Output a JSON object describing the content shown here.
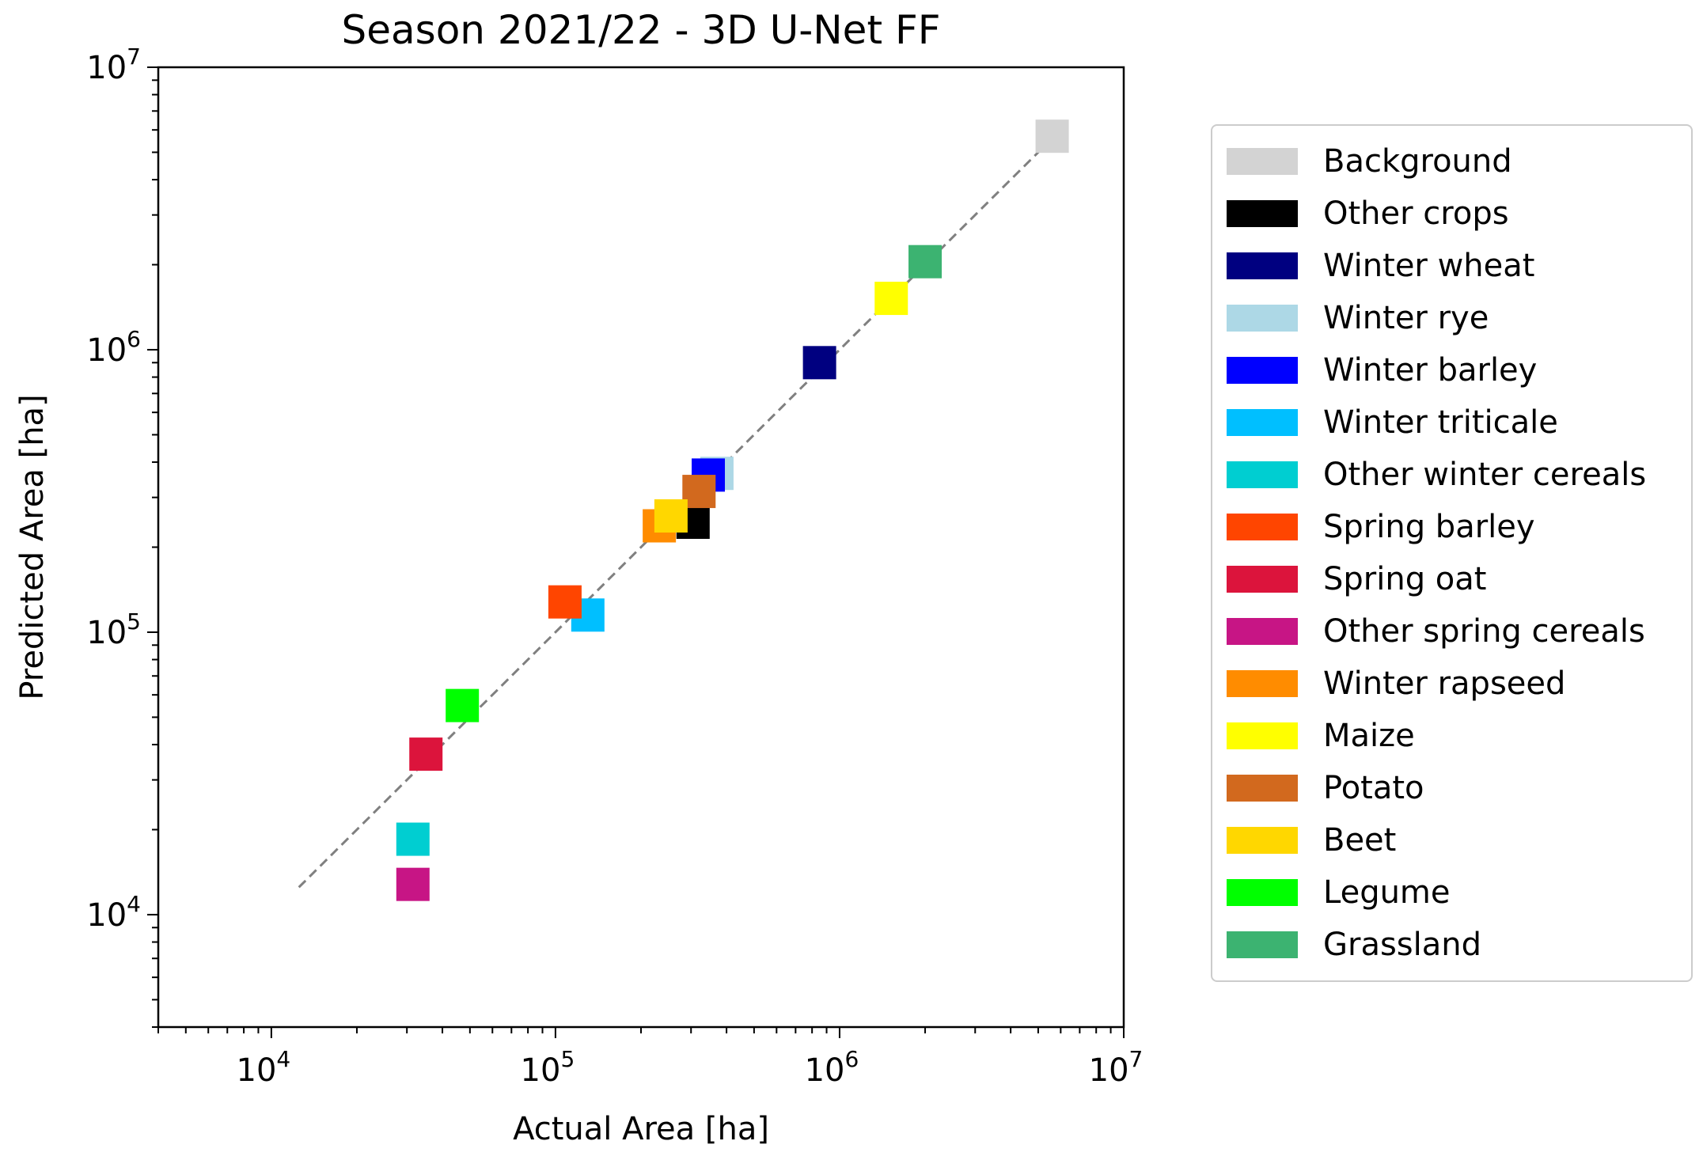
{
  "chart_data": {
    "type": "scatter",
    "title": "Season 2021/22 - 3D U-Net FF",
    "xlabel": "Actual Area [ha]",
    "ylabel": "Predicted Area [ha]",
    "xscale": "log",
    "yscale": "log",
    "xlim": [
      4000,
      10000000
    ],
    "ylim": [
      4000,
      10000000
    ],
    "x_tick_labels": [
      {
        "base": "10",
        "exp": "4",
        "value": 10000
      },
      {
        "base": "10",
        "exp": "5",
        "value": 100000
      },
      {
        "base": "10",
        "exp": "6",
        "value": 1000000
      },
      {
        "base": "10",
        "exp": "7",
        "value": 10000000
      }
    ],
    "y_tick_labels": [
      {
        "base": "10",
        "exp": "4",
        "value": 10000
      },
      {
        "base": "10",
        "exp": "5",
        "value": 100000
      },
      {
        "base": "10",
        "exp": "6",
        "value": 1000000
      },
      {
        "base": "10",
        "exp": "7",
        "value": 10000000
      }
    ],
    "grid": false,
    "legend_position": "outside-right",
    "reference_line": {
      "style": "dashed",
      "color": "#808080",
      "from": [
        12500,
        12500
      ],
      "to": [
        5600000,
        5600000
      ]
    },
    "series": [
      {
        "name": "Background",
        "color": "#D3D3D3",
        "x": 5600000,
        "y": 5700000
      },
      {
        "name": "Other crops",
        "color": "#000000",
        "x": 305000,
        "y": 245000
      },
      {
        "name": "Winter wheat",
        "color": "#000080",
        "x": 850000,
        "y": 900000
      },
      {
        "name": "Winter rye",
        "color": "#ADD8E6",
        "x": 370000,
        "y": 365000
      },
      {
        "name": "Winter barley",
        "color": "#0000FF",
        "x": 345000,
        "y": 360000
      },
      {
        "name": "Winter triticale",
        "color": "#00BFFF",
        "x": 130000,
        "y": 115000
      },
      {
        "name": "Other winter cereals",
        "color": "#00CED1",
        "x": 31500,
        "y": 18500
      },
      {
        "name": "Spring barley",
        "color": "#FF4500",
        "x": 108000,
        "y": 128000
      },
      {
        "name": "Spring oat",
        "color": "#DC143C",
        "x": 35000,
        "y": 37000
      },
      {
        "name": "Other spring cereals",
        "color": "#C71585",
        "x": 31500,
        "y": 12800
      },
      {
        "name": "Winter rapseed",
        "color": "#FF8C00",
        "x": 232000,
        "y": 238000
      },
      {
        "name": "Maize",
        "color": "#FFFF00",
        "x": 1520000,
        "y": 1520000
      },
      {
        "name": "Potato",
        "color": "#D2691E",
        "x": 320000,
        "y": 315000
      },
      {
        "name": "Beet",
        "color": "#FFD700",
        "x": 255000,
        "y": 258000
      },
      {
        "name": "Legume",
        "color": "#00FF00",
        "x": 47000,
        "y": 55000
      },
      {
        "name": "Grassland",
        "color": "#3CB371",
        "x": 2000000,
        "y": 2050000
      }
    ]
  }
}
